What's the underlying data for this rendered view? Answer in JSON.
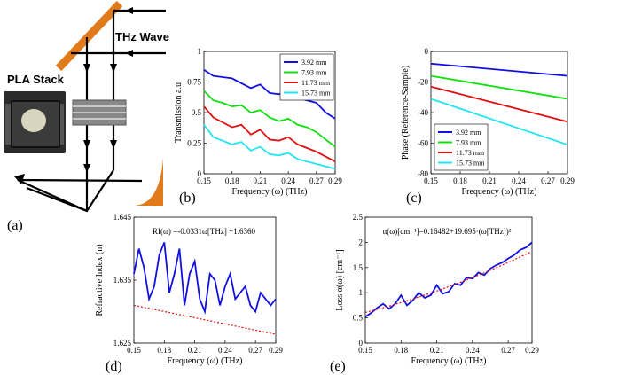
{
  "colors": {
    "blue": "#1010e0",
    "green": "#10e010",
    "red": "#e01010",
    "cyan": "#22e6f2",
    "fit": "#e01010",
    "mirror": "#e07a1a",
    "axis": "#000000"
  },
  "setup": {
    "thz_label": "THz Wave",
    "pla_label": "PLA Stack",
    "panel_label": "(a)"
  },
  "chart_data": [
    {
      "panel": "(b)",
      "type": "line",
      "ylabel": "Transmission a.u",
      "xlabel": "Frequency (ω) (THz)",
      "xlim": [
        0.15,
        0.29
      ],
      "ylim": [
        0,
        1
      ],
      "xticks": [
        "0.15",
        "0.18",
        "0.21",
        "0.24",
        "0.27",
        "0.29"
      ],
      "yticks": [
        "0",
        "0.25",
        "0.5",
        "0.75",
        "1"
      ],
      "legend_position": "top-right",
      "series": [
        {
          "name": "3.92 mm",
          "color": "#1010e0",
          "x": [
            0.15,
            0.16,
            0.17,
            0.18,
            0.19,
            0.2,
            0.21,
            0.22,
            0.23,
            0.24,
            0.25,
            0.26,
            0.27,
            0.28,
            0.29
          ],
          "y": [
            0.85,
            0.8,
            0.79,
            0.78,
            0.74,
            0.7,
            0.73,
            0.66,
            0.65,
            0.68,
            0.62,
            0.6,
            0.58,
            0.5,
            0.45
          ]
        },
        {
          "name": "7.93 mm",
          "color": "#10e010",
          "x": [
            0.15,
            0.16,
            0.17,
            0.18,
            0.19,
            0.2,
            0.21,
            0.22,
            0.23,
            0.24,
            0.25,
            0.26,
            0.27,
            0.28,
            0.29
          ],
          "y": [
            0.68,
            0.6,
            0.58,
            0.55,
            0.56,
            0.5,
            0.52,
            0.46,
            0.43,
            0.45,
            0.4,
            0.38,
            0.34,
            0.28,
            0.22
          ]
        },
        {
          "name": "11.73 mm",
          "color": "#e01010",
          "x": [
            0.15,
            0.16,
            0.17,
            0.18,
            0.19,
            0.2,
            0.21,
            0.22,
            0.23,
            0.24,
            0.25,
            0.26,
            0.27,
            0.28,
            0.29
          ],
          "y": [
            0.55,
            0.46,
            0.42,
            0.38,
            0.4,
            0.32,
            0.36,
            0.28,
            0.27,
            0.3,
            0.24,
            0.21,
            0.18,
            0.14,
            0.1
          ]
        },
        {
          "name": "15.73 mm",
          "color": "#22e6f2",
          "x": [
            0.15,
            0.16,
            0.17,
            0.18,
            0.19,
            0.2,
            0.21,
            0.22,
            0.23,
            0.24,
            0.25,
            0.26,
            0.27,
            0.28,
            0.29
          ],
          "y": [
            0.4,
            0.3,
            0.27,
            0.24,
            0.26,
            0.19,
            0.22,
            0.16,
            0.15,
            0.17,
            0.12,
            0.1,
            0.08,
            0.06,
            0.04
          ]
        }
      ]
    },
    {
      "panel": "(c)",
      "type": "line",
      "ylabel": "Phase (Reference-Sample)",
      "xlabel": "Frequency (ω) (THz)",
      "xlim": [
        0.15,
        0.29
      ],
      "ylim": [
        -80,
        0
      ],
      "xticks": [
        "0.15",
        "0.18",
        "0.21",
        "0.24",
        "0.27",
        "0.29"
      ],
      "yticks": [
        "0",
        "-20",
        "-40",
        "-60",
        "-80"
      ],
      "legend_position": "bottom-left",
      "series": [
        {
          "name": "3.92 mm",
          "color": "#1010e0",
          "x": [
            0.15,
            0.29
          ],
          "y": [
            -8,
            -16
          ]
        },
        {
          "name": "7.93 mm",
          "color": "#10e010",
          "x": [
            0.15,
            0.29
          ],
          "y": [
            -16,
            -31
          ]
        },
        {
          "name": "11.73 mm",
          "color": "#e01010",
          "x": [
            0.15,
            0.29
          ],
          "y": [
            -23,
            -46
          ]
        },
        {
          "name": "15.73 mm",
          "color": "#22e6f2",
          "x": [
            0.15,
            0.29
          ],
          "y": [
            -31,
            -61
          ]
        }
      ]
    },
    {
      "panel": "(d)",
      "type": "line",
      "ylabel": "Refractive Index (n)",
      "xlabel": "Frequency (ω) (THz)",
      "annotation": "RI(ω) =-0.0331ω[THz] +1.6360",
      "xlim": [
        0.15,
        0.29
      ],
      "ylim": [
        1.625,
        1.645
      ],
      "xticks": [
        "0.15",
        "0.18",
        "0.21",
        "0.24",
        "0.27",
        "0.29"
      ],
      "yticks": [
        "1.645",
        "1.635",
        "1.625"
      ],
      "series": [
        {
          "name": "",
          "color": "#1010e0",
          "x": [
            0.15,
            0.155,
            0.16,
            0.165,
            0.17,
            0.175,
            0.18,
            0.185,
            0.19,
            0.195,
            0.2,
            0.205,
            0.21,
            0.215,
            0.22,
            0.225,
            0.23,
            0.235,
            0.24,
            0.245,
            0.25,
            0.255,
            0.26,
            0.265,
            0.27,
            0.275,
            0.28,
            0.285,
            0.29
          ],
          "y": [
            1.636,
            1.64,
            1.637,
            1.632,
            1.634,
            1.639,
            1.641,
            1.633,
            1.636,
            1.64,
            1.631,
            1.636,
            1.638,
            1.632,
            1.63,
            1.636,
            1.635,
            1.631,
            1.634,
            1.636,
            1.632,
            1.633,
            1.634,
            1.631,
            1.63,
            1.633,
            1.632,
            1.631,
            1.632
          ]
        },
        {
          "name": "",
          "color": "#e01010",
          "dashed": true,
          "x": [
            0.15,
            0.29
          ],
          "y": [
            1.631,
            1.6264
          ]
        }
      ]
    },
    {
      "panel": "(e)",
      "type": "line",
      "ylabel": "Loss α(ω) [cm⁻¹]",
      "xlabel": "Frequency (ω) (THz)",
      "annotation": "α(ω)[cm⁻¹]=0.16482+19.695·(ω[THz])²",
      "xlim": [
        0.15,
        0.29
      ],
      "ylim": [
        0,
        2.5
      ],
      "xticks": [
        "0.15",
        "0.18",
        "0.21",
        "0.24",
        "0.27",
        "0.29"
      ],
      "yticks": [
        "2.5",
        "2",
        "1.5",
        "1",
        "0.5",
        "0"
      ],
      "series": [
        {
          "name": "",
          "color": "#1010e0",
          "x": [
            0.15,
            0.155,
            0.16,
            0.165,
            0.17,
            0.175,
            0.18,
            0.185,
            0.19,
            0.195,
            0.2,
            0.205,
            0.21,
            0.215,
            0.22,
            0.225,
            0.23,
            0.235,
            0.24,
            0.245,
            0.25,
            0.255,
            0.26,
            0.265,
            0.27,
            0.275,
            0.28,
            0.285,
            0.29
          ],
          "y": [
            0.52,
            0.6,
            0.7,
            0.78,
            0.68,
            0.78,
            0.95,
            0.75,
            0.85,
            1.0,
            0.9,
            0.95,
            1.15,
            0.98,
            1.02,
            1.18,
            1.15,
            1.3,
            1.28,
            1.4,
            1.35,
            1.48,
            1.55,
            1.6,
            1.68,
            1.75,
            1.85,
            1.9,
            2.0
          ]
        },
        {
          "name": "",
          "color": "#e01010",
          "dashed": true,
          "x": [
            0.15,
            0.17,
            0.19,
            0.21,
            0.23,
            0.25,
            0.27,
            0.29
          ],
          "y": [
            0.608,
            0.734,
            0.876,
            1.033,
            1.207,
            1.396,
            1.601,
            1.821
          ]
        }
      ]
    }
  ]
}
